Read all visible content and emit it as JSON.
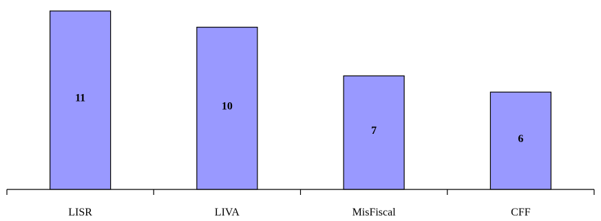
{
  "chart_data": {
    "type": "bar",
    "categories": [
      "LISR",
      "LIVA",
      "MisFiscal",
      "CFF"
    ],
    "values": [
      11,
      10,
      7,
      6
    ],
    "data_labels": [
      "11",
      "10",
      "7",
      "6"
    ],
    "title": "",
    "xlabel": "",
    "ylabel": "",
    "ylim": [
      0,
      11
    ],
    "grid": false,
    "legend": "none",
    "bar_color": "#9999ff",
    "edge_color": "#000000"
  }
}
